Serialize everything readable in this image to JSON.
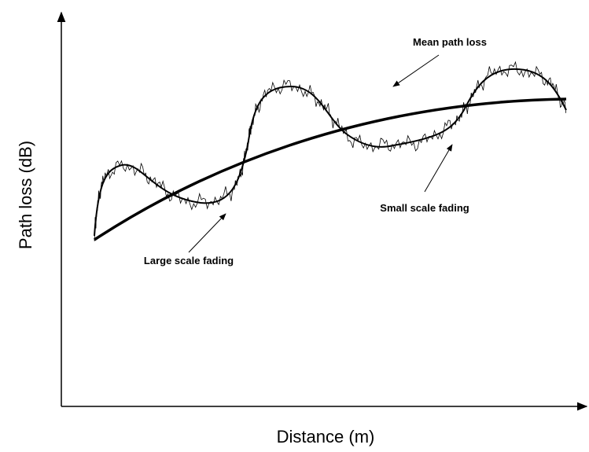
{
  "axes": {
    "y_label": "Path loss (dB)",
    "x_label": "Distance (m)"
  },
  "annotations": {
    "mean": "Mean path loss",
    "large": "Large scale fading",
    "small": "Small scale fading"
  }
}
